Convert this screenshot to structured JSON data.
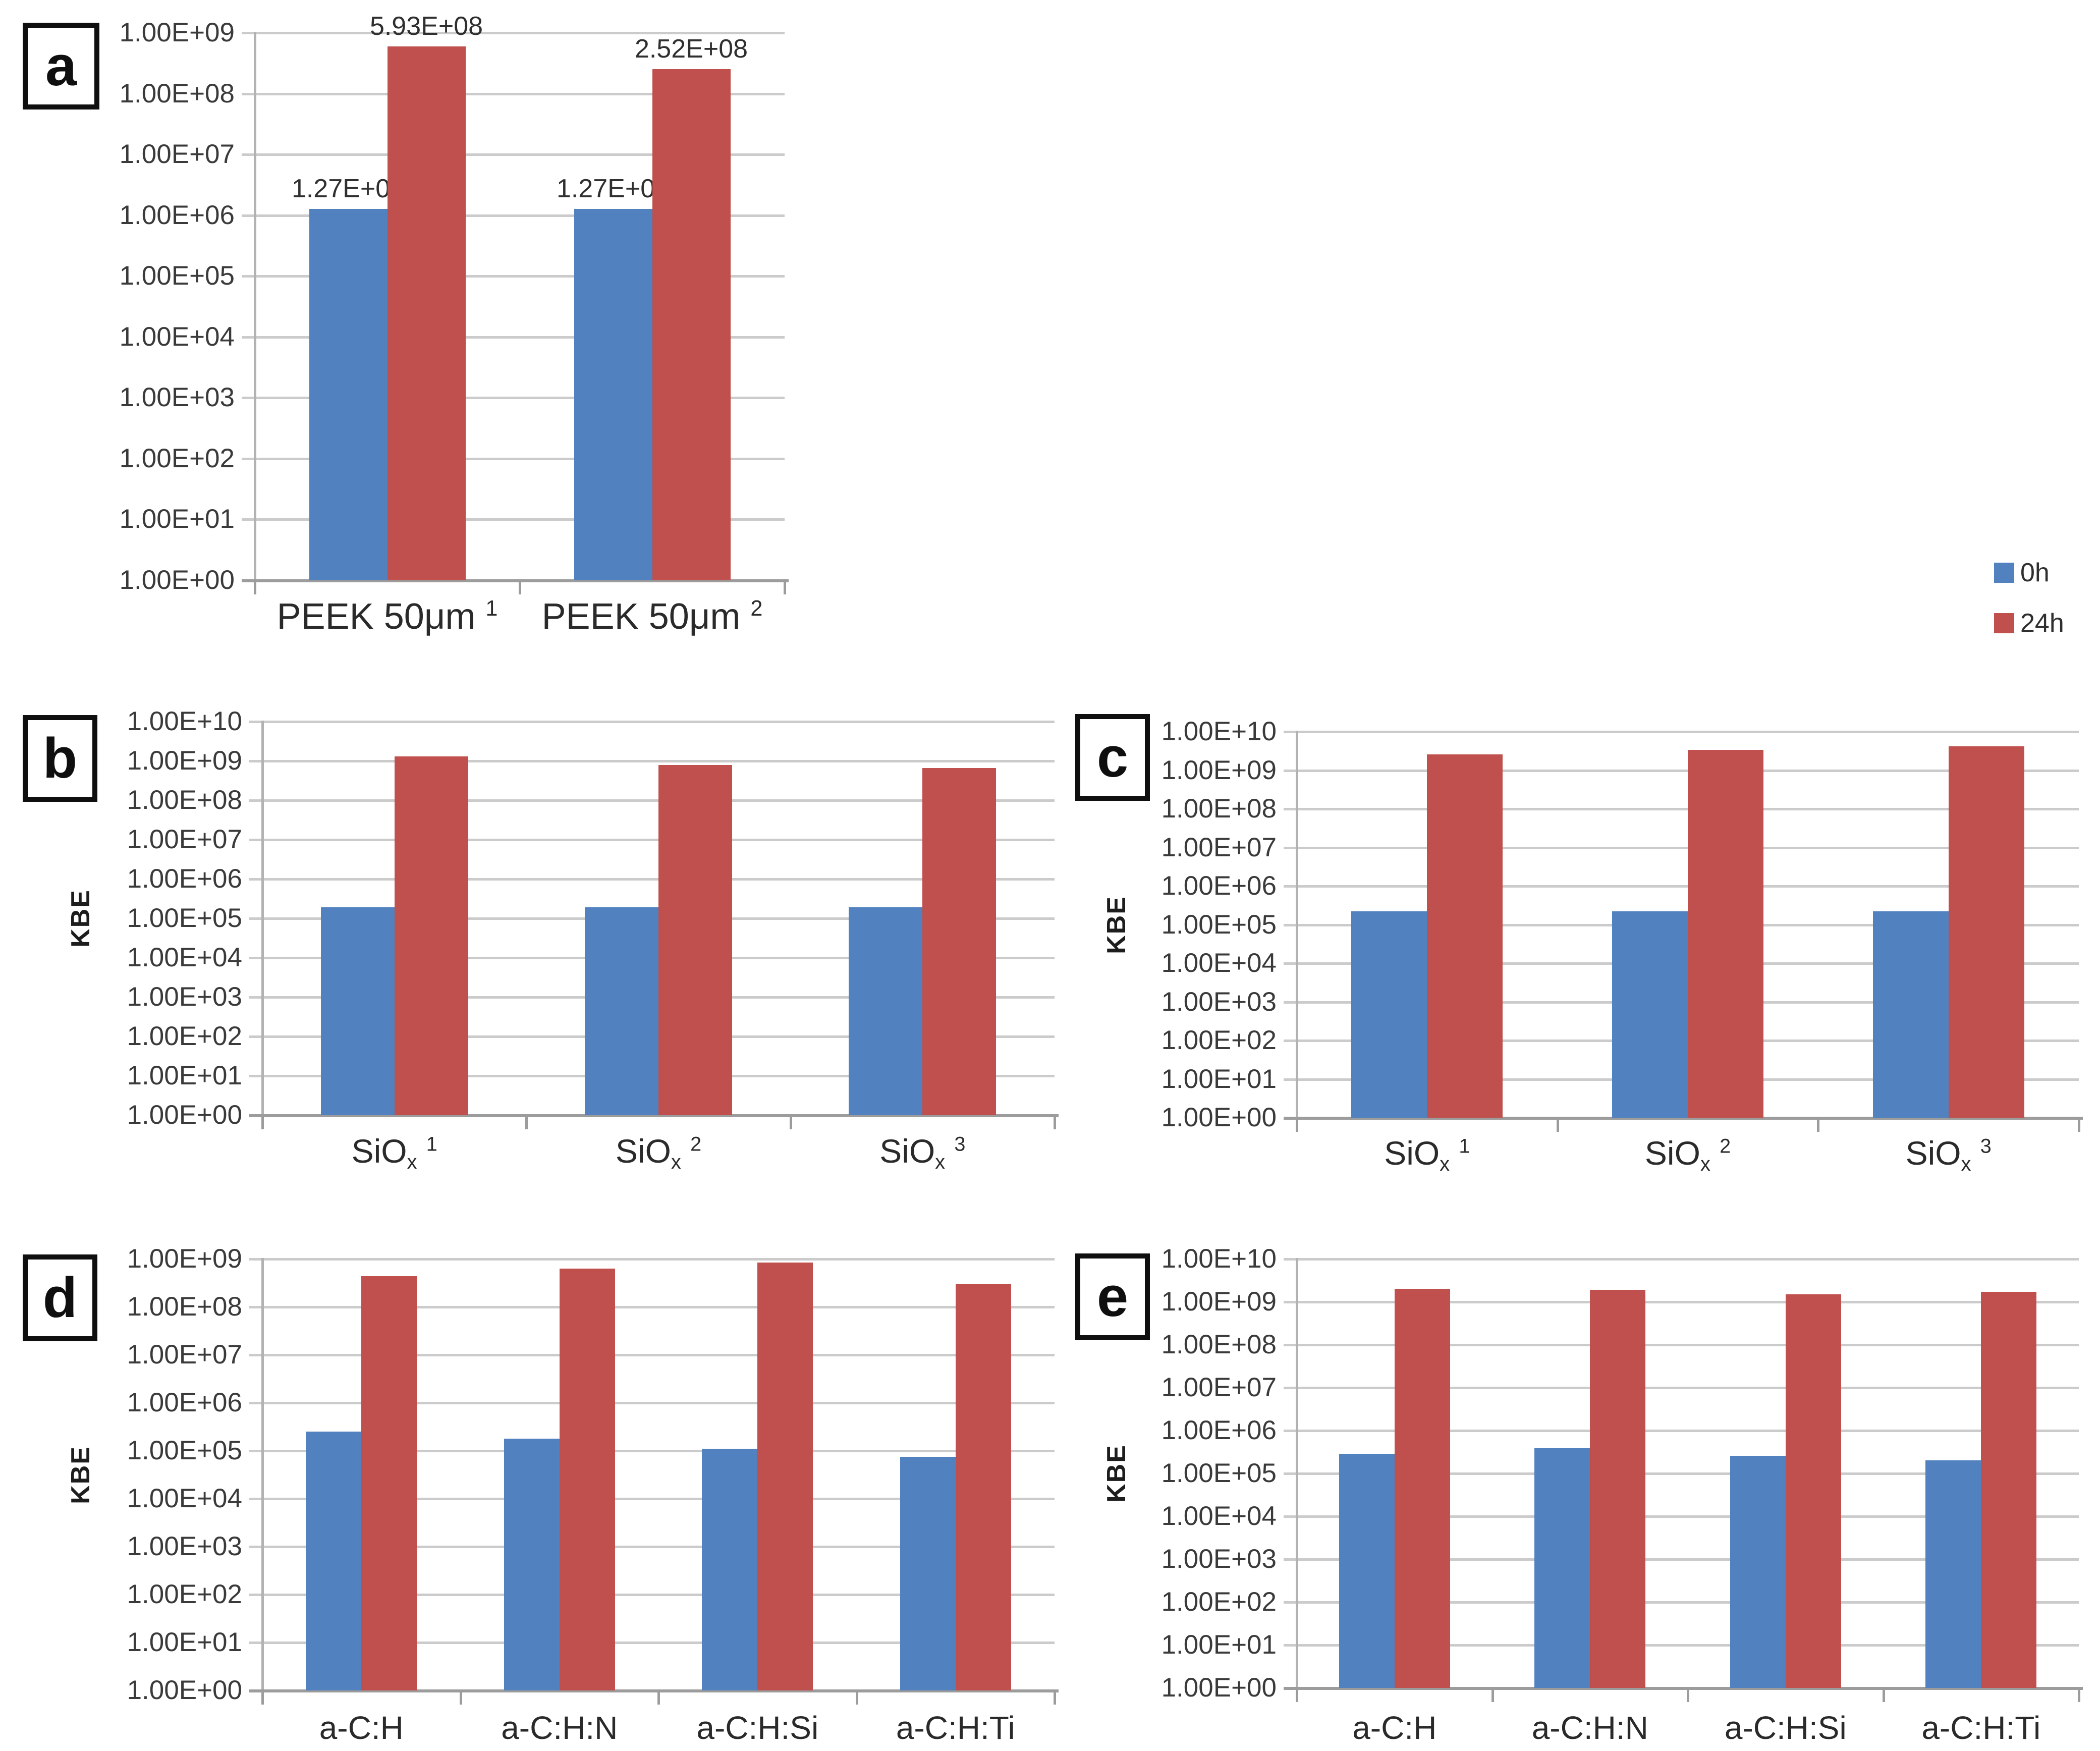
{
  "figure": {
    "background": "#ffffff"
  },
  "colors": {
    "series_0h": "#5181BE",
    "series_24h": "#BF504D",
    "gridline": "#CBCBCB",
    "axis": "#9C9C9C",
    "text": "#3A3A3A"
  },
  "legend": {
    "position": "right-middle",
    "items": [
      {
        "label": "0h",
        "color": "#5181BE"
      },
      {
        "label": "24h",
        "color": "#BF504D"
      }
    ]
  },
  "chart_data": [
    {
      "id": "a",
      "panel_label": "a",
      "type": "bar",
      "y_scale": "log",
      "ylabel": "",
      "ylim": [
        1,
        1000000000
      ],
      "grid": true,
      "yticks": [
        "1.00E+09",
        "1.00E+08",
        "1.00E+07",
        "1.00E+06",
        "1.00E+05",
        "1.00E+04",
        "1.00E+03",
        "1.00E+02",
        "1.00E+01",
        "1.00E+00"
      ],
      "categories": [
        [
          {
            "text": "PEEK 50μm "
          },
          {
            "text": "1",
            "style": "sup"
          }
        ],
        [
          {
            "text": "PEEK 50μm "
          },
          {
            "text": "2",
            "style": "sup"
          }
        ]
      ],
      "series": [
        {
          "name": "0h",
          "values": [
            1270000,
            1270000
          ],
          "data_labels": [
            "1.27E+06",
            "1.27E+06"
          ]
        },
        {
          "name": "24h",
          "values": [
            593000000,
            252000000
          ],
          "data_labels": [
            "5.93E+08",
            "2.52E+08"
          ]
        }
      ],
      "show_data_labels": true
    },
    {
      "id": "b",
      "panel_label": "b",
      "type": "bar",
      "y_scale": "log",
      "ylabel": "KBE",
      "ylim": [
        1,
        10000000000
      ],
      "grid": true,
      "yticks": [
        "1.00E+10",
        "1.00E+09",
        "1.00E+08",
        "1.00E+07",
        "1.00E+06",
        "1.00E+05",
        "1.00E+04",
        "1.00E+03",
        "1.00E+02",
        "1.00E+01",
        "1.00E+00"
      ],
      "categories": [
        [
          {
            "text": "SiO"
          },
          {
            "text": "x",
            "style": "sub"
          },
          {
            "text": " "
          },
          {
            "text": "1",
            "style": "sup"
          }
        ],
        [
          {
            "text": "SiO"
          },
          {
            "text": "x",
            "style": "sub"
          },
          {
            "text": " "
          },
          {
            "text": "2",
            "style": "sup"
          }
        ],
        [
          {
            "text": "SiO"
          },
          {
            "text": "x",
            "style": "sub"
          },
          {
            "text": " "
          },
          {
            "text": "3",
            "style": "sup"
          }
        ]
      ],
      "series": [
        {
          "name": "0h",
          "values": [
            190000,
            190000,
            190000
          ]
        },
        {
          "name": "24h",
          "values": [
            1300000000,
            800000000,
            660000000
          ]
        }
      ],
      "show_data_labels": false
    },
    {
      "id": "c",
      "panel_label": "c",
      "type": "bar",
      "y_scale": "log",
      "ylabel": "KBE",
      "ylim": [
        1,
        10000000000
      ],
      "grid": true,
      "yticks": [
        "1.00E+10",
        "1.00E+09",
        "1.00E+08",
        "1.00E+07",
        "1.00E+06",
        "1.00E+05",
        "1.00E+04",
        "1.00E+03",
        "1.00E+02",
        "1.00E+01",
        "1.00E+00"
      ],
      "categories": [
        [
          {
            "text": "SiO"
          },
          {
            "text": "x",
            "style": "sub"
          },
          {
            "text": " "
          },
          {
            "text": "1",
            "style": "sup"
          }
        ],
        [
          {
            "text": "SiO"
          },
          {
            "text": "x",
            "style": "sub"
          },
          {
            "text": " "
          },
          {
            "text": "2",
            "style": "sup"
          }
        ],
        [
          {
            "text": "SiO"
          },
          {
            "text": "x",
            "style": "sub"
          },
          {
            "text": " "
          },
          {
            "text": "3",
            "style": "sup"
          }
        ]
      ],
      "series": [
        {
          "name": "0h",
          "values": [
            220000,
            220000,
            220000
          ]
        },
        {
          "name": "24h",
          "values": [
            2600000000,
            3400000000,
            4200000000
          ]
        }
      ],
      "show_data_labels": false
    },
    {
      "id": "d",
      "panel_label": "d",
      "type": "bar",
      "y_scale": "log",
      "ylabel": "KBE",
      "ylim": [
        1,
        1000000000
      ],
      "grid": true,
      "yticks": [
        "1.00E+09",
        "1.00E+08",
        "1.00E+07",
        "1.00E+06",
        "1.00E+05",
        "1.00E+04",
        "1.00E+03",
        "1.00E+02",
        "1.00E+01",
        "1.00E+00"
      ],
      "categories": [
        [
          {
            "text": "a-C:H"
          }
        ],
        [
          {
            "text": "a-C:H:N"
          }
        ],
        [
          {
            "text": "a-C:H:Si"
          }
        ],
        [
          {
            "text": "a-C:H:Ti"
          }
        ]
      ],
      "series": [
        {
          "name": "0h",
          "values": [
            250000,
            180000,
            110000,
            75000
          ]
        },
        {
          "name": "24h",
          "values": [
            440000000,
            630000000,
            850000000,
            300000000
          ]
        }
      ],
      "show_data_labels": false
    },
    {
      "id": "e",
      "panel_label": "e",
      "type": "bar",
      "y_scale": "log",
      "ylabel": "KBE",
      "ylim": [
        1,
        10000000000
      ],
      "grid": true,
      "yticks": [
        "1.00E+10",
        "1.00E+09",
        "1.00E+08",
        "1.00E+07",
        "1.00E+06",
        "1.00E+05",
        "1.00E+04",
        "1.00E+03",
        "1.00E+02",
        "1.00E+01",
        "1.00E+00"
      ],
      "categories": [
        [
          {
            "text": "a-C:H"
          }
        ],
        [
          {
            "text": "a-C:H:N"
          }
        ],
        [
          {
            "text": "a-C:H:Si"
          }
        ],
        [
          {
            "text": "a-C:H:Ti"
          }
        ]
      ],
      "series": [
        {
          "name": "0h",
          "values": [
            290000,
            390000,
            260000,
            200000
          ]
        },
        {
          "name": "24h",
          "values": [
            2000000000,
            1900000000,
            1500000000,
            1700000000
          ]
        }
      ],
      "show_data_labels": false
    }
  ]
}
